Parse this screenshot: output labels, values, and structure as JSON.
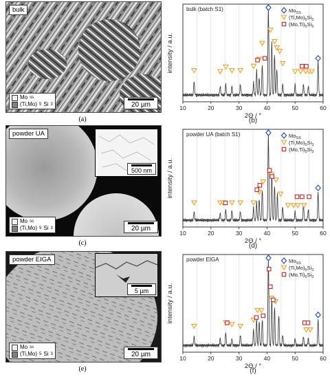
{
  "panels": [
    {
      "caption": "(a)",
      "sample": "bulk",
      "scale": "20 µm",
      "leg1": "Mo",
      "leg1sub": "ss",
      "leg2": "(Ti,Mo)",
      "leg2sub": "5",
      "leg2tail": "Si",
      "leg2tailsub": "3"
    },
    {
      "caption": "(c)",
      "sample": "powder UA",
      "scale": "20 µm",
      "inset_scale": "500 nm",
      "leg1": "Mo",
      "leg1sub": "ss",
      "leg2": "(Ti,Mo)",
      "leg2sub": "5",
      "leg2tail": "Si",
      "leg2tailsub": "3"
    },
    {
      "caption": "(e)",
      "sample": "powder EIGA",
      "scale": "20 µm",
      "inset_scale": "5 µm",
      "leg1": "Mo",
      "leg1sub": "ss",
      "leg2": "(Ti,Mo)",
      "leg2sub": "5",
      "leg2tail": "Si",
      "leg2tailsub": "3"
    }
  ],
  "chart_data": [
    {
      "type": "line",
      "caption": "(b)",
      "annotation": "bulk (batch S1)",
      "xlabel": "2Θ / °",
      "ylabel": "intensity / a.u.",
      "xlim": [
        10,
        60
      ],
      "xticks": [
        10,
        20,
        30,
        40,
        50,
        60
      ],
      "legend": [
        {
          "label": "Mo",
          "sub": "SS",
          "marker": "diamond",
          "color": "#1a3fd0"
        },
        {
          "label": "(Ti,Mo)",
          "sub": "5",
          "tail": "Si",
          "tailsub": "3",
          "marker": "triangle",
          "color": "#f0a020"
        },
        {
          "label": "(Mo,Ti)",
          "sub": "5",
          "tail": "Si",
          "tailsub": "3",
          "marker": "square",
          "color": "#d02020"
        }
      ],
      "peaks": [
        [
          14,
          0.16
        ],
        [
          23.3,
          0.1
        ],
        [
          25.3,
          0.12
        ],
        [
          27.5,
          0.1
        ],
        [
          30.5,
          0.12
        ],
        [
          35.2,
          0.14
        ],
        [
          36.3,
          0.28
        ],
        [
          37.2,
          0.2
        ],
        [
          38.3,
          0.35
        ],
        [
          40.5,
          1.0
        ],
        [
          41.7,
          0.62
        ],
        [
          42.7,
          0.46
        ],
        [
          43.5,
          0.3
        ],
        [
          45.6,
          0.12
        ],
        [
          50,
          0.12
        ],
        [
          53,
          0.12
        ],
        [
          54.7,
          0.1
        ],
        [
          58.2,
          0.38
        ]
      ],
      "markers": {
        "diamond": [
          [
            40.5,
            1.0
          ],
          [
            58.2,
            0.4
          ]
        ],
        "triangle": [
          [
            14,
            0.26
          ],
          [
            23.3,
            0.25
          ],
          [
            25.3,
            0.3
          ],
          [
            27.5,
            0.26
          ],
          [
            30.5,
            0.26
          ],
          [
            35.2,
            0.31
          ],
          [
            37.2,
            0.39
          ],
          [
            38.3,
            0.57
          ],
          [
            41.2,
            0.72
          ],
          [
            42.7,
            0.59
          ],
          [
            43.5,
            0.52
          ],
          [
            44.5,
            0.48
          ],
          [
            45.6,
            0.34
          ],
          [
            50,
            0.25
          ],
          [
            52,
            0.25
          ],
          [
            53.8,
            0.25
          ],
          [
            55,
            0.25
          ],
          [
            56,
            0.25
          ]
        ],
        "square": [
          [
            36.6,
            0.38
          ],
          [
            39.2,
            0.4
          ],
          [
            52.5,
            0.31
          ],
          [
            54,
            0.31
          ]
        ]
      }
    },
    {
      "type": "line",
      "caption": "(d)",
      "annotation": "powder UA (batch S1)",
      "xlabel": "2Θ / °",
      "ylabel": "intensity / a.u.",
      "xlim": [
        10,
        60
      ],
      "xticks": [
        10,
        20,
        30,
        40,
        50,
        60
      ],
      "legend": [
        {
          "label": "Mo",
          "sub": "SS",
          "marker": "diamond",
          "color": "#1a3fd0"
        },
        {
          "label": "(Ti,Mo)",
          "sub": "5",
          "tail": "Si",
          "tailsub": "3",
          "marker": "triangle",
          "color": "#f0a020"
        },
        {
          "label": "(Mo,Ti)",
          "sub": "5",
          "tail": "Si",
          "tailsub": "3",
          "marker": "square",
          "color": "#d02020"
        }
      ],
      "peaks": [
        [
          14,
          0.1
        ],
        [
          23.3,
          0.08
        ],
        [
          25.3,
          0.12
        ],
        [
          27.5,
          0.11
        ],
        [
          30.5,
          0.1
        ],
        [
          35.2,
          0.14
        ],
        [
          36.3,
          0.2
        ],
        [
          37.2,
          0.25
        ],
        [
          38.3,
          0.35
        ],
        [
          40.5,
          1.0
        ],
        [
          41.7,
          0.55
        ],
        [
          42.7,
          0.4
        ],
        [
          43.7,
          0.3
        ],
        [
          45.6,
          0.15
        ],
        [
          50,
          0.1
        ],
        [
          53,
          0.18
        ],
        [
          54.7,
          0.12
        ],
        [
          58.2,
          0.32
        ]
      ],
      "markers": {
        "diamond": [
          [
            40.5,
            1.0
          ],
          [
            58.2,
            0.35
          ]
        ],
        "triangle": [
          [
            14,
            0.18
          ],
          [
            23.3,
            0.18
          ],
          [
            24.3,
            0.18
          ],
          [
            27.5,
            0.18
          ],
          [
            30.5,
            0.18
          ],
          [
            35.2,
            0.18
          ],
          [
            37.2,
            0.3
          ],
          [
            38.6,
            0.42
          ],
          [
            41.6,
            0.5
          ],
          [
            43.2,
            0.44
          ],
          [
            44.8,
            0.28
          ],
          [
            47.5,
            0.15
          ],
          [
            49.5,
            0.15
          ],
          [
            51,
            0.15
          ],
          [
            53.2,
            0.15
          ]
        ],
        "square": [
          [
            25.2,
            0.18
          ],
          [
            36.4,
            0.33
          ],
          [
            37.4,
            0.38
          ],
          [
            40.9,
            0.55
          ],
          [
            41.8,
            0.48
          ],
          [
            50.7,
            0.25
          ],
          [
            52.5,
            0.25
          ],
          [
            55,
            0.25
          ]
        ]
      }
    },
    {
      "type": "line",
      "caption": "(f)",
      "annotation": "powder EIGA",
      "xlabel": "2Θ / °",
      "ylabel": "intensity / a.u.",
      "xlim": [
        10,
        60
      ],
      "xticks": [
        10,
        20,
        30,
        40,
        50,
        60
      ],
      "legend": [
        {
          "label": "Mo",
          "sub": "SS",
          "marker": "diamond",
          "color": "#1a3fd0"
        },
        {
          "label": "(Ti,Mo)",
          "sub": "5",
          "tail": "Si",
          "tailsub": "3",
          "marker": "triangle",
          "color": "#f0a020"
        },
        {
          "label": "(Mo,Ti)",
          "sub": "5",
          "tail": "Si",
          "tailsub": "3",
          "marker": "square",
          "color": "#d02020"
        }
      ],
      "peaks": [
        [
          14,
          0.1
        ],
        [
          23.3,
          0.08
        ],
        [
          25.3,
          0.15
        ],
        [
          27.5,
          0.08
        ],
        [
          30.5,
          0.12
        ],
        [
          35.2,
          0.18
        ],
        [
          36.3,
          0.3
        ],
        [
          37.2,
          0.28
        ],
        [
          38.3,
          0.3
        ],
        [
          40.5,
          1.0
        ],
        [
          41.7,
          0.55
        ],
        [
          42.7,
          0.45
        ],
        [
          44.2,
          0.35
        ],
        [
          45.6,
          0.12
        ],
        [
          50,
          0.08
        ],
        [
          53,
          0.1
        ],
        [
          54.7,
          0.08
        ],
        [
          58.2,
          0.3
        ]
      ],
      "markers": {
        "diamond": [
          [
            40.5,
            1.0
          ],
          [
            58.2,
            0.33
          ]
        ],
        "triangle": [
          [
            14,
            0.2
          ],
          [
            25.3,
            0.24
          ],
          [
            27.5,
            0.22
          ],
          [
            30.5,
            0.2
          ],
          [
            35.2,
            0.27
          ],
          [
            36.6,
            0.38
          ],
          [
            38,
            0.38
          ],
          [
            41.6,
            0.52
          ],
          [
            43,
            0.48
          ],
          [
            54,
            0.16
          ],
          [
            55.4,
            0.16
          ]
        ],
        "square": [
          [
            25.8,
            0.24
          ],
          [
            36.2,
            0.3
          ],
          [
            38.6,
            0.32
          ],
          [
            40.7,
            0.85
          ],
          [
            41.2,
            0.65
          ],
          [
            42.2,
            0.5
          ],
          [
            53.4,
            0.24
          ],
          [
            54.6,
            0.24
          ]
        ]
      }
    }
  ]
}
